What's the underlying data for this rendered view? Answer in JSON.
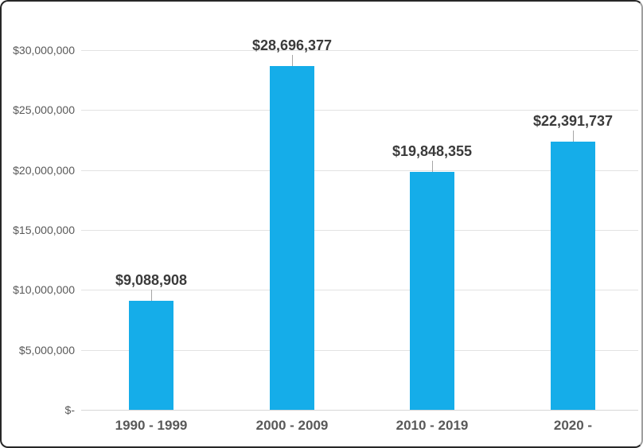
{
  "chart_data": {
    "type": "bar",
    "title": "",
    "categories": [
      "1990 - 1999",
      "2000 - 2009",
      "2010 - 2019",
      "2020 -"
    ],
    "values": [
      9088908,
      28696377,
      19848355,
      22391737
    ],
    "data_labels": [
      "$9,088,908",
      "$28,696,377",
      "$19,848,355",
      "$22,391,737"
    ],
    "y_ticks": [
      {
        "value": 0,
        "label": "$-"
      },
      {
        "value": 5000000,
        "label": "$5,000,000"
      },
      {
        "value": 10000000,
        "label": "$10,000,000"
      },
      {
        "value": 15000000,
        "label": "$15,000,000"
      },
      {
        "value": 20000000,
        "label": "$20,000,000"
      },
      {
        "value": 25000000,
        "label": "$25,000,000"
      },
      {
        "value": 30000000,
        "label": "$30,000,000"
      }
    ],
    "ylim": [
      0,
      30000000
    ],
    "xlabel": "",
    "ylabel": "",
    "grid": true,
    "legend_position": "none",
    "colors": {
      "bar": "#15ADE9",
      "gridline": "#E2E2E2",
      "axis_line": "#D6D6D6",
      "leader_line": "#A6A6A6",
      "data_label_text": "#3B3B3B",
      "axis_text": "#595959",
      "frame_border": "#262626"
    }
  }
}
